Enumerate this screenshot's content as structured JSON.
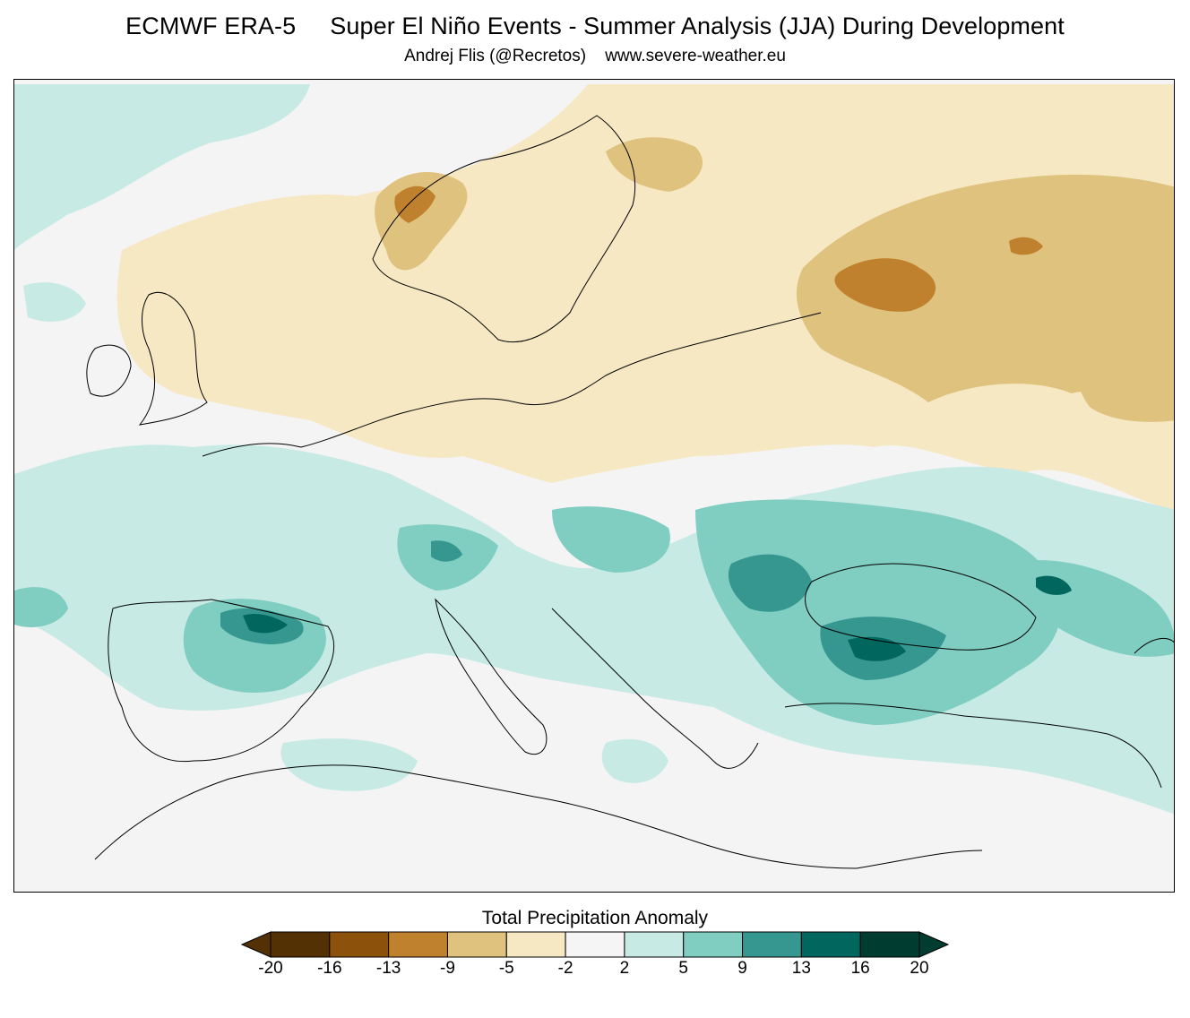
{
  "header": {
    "title": "ECMWF ERA-5     Super El Niño Events - Summer Analysis (JJA) During Development",
    "subtitle": "Andrej Flis (@Recretos)    www.severe-weather.eu"
  },
  "colorbar": {
    "label": "Total Precipitation Anomaly",
    "ticks": [
      "-20",
      "-16",
      "-13",
      "-9",
      "-5",
      "-2",
      "2",
      "5",
      "9",
      "13",
      "16",
      "20"
    ],
    "colors": [
      "#543005",
      "#8c510a",
      "#bf812d",
      "#dfc27d",
      "#f6e8c3",
      "#f5f5f5",
      "#c7eae5",
      "#80cdc1",
      "#35978f",
      "#01665e",
      "#003c30"
    ]
  },
  "map": {
    "land_color": "#f4f4f4",
    "border_color": "#000000"
  }
}
